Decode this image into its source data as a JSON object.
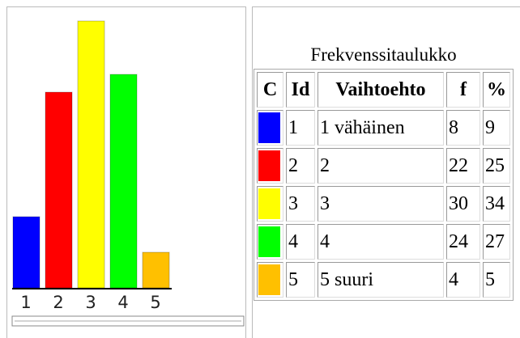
{
  "chart_data": {
    "type": "bar",
    "categories": [
      "1",
      "2",
      "3",
      "4",
      "5"
    ],
    "values": [
      8,
      22,
      30,
      24,
      4
    ],
    "colors": [
      "#0000ff",
      "#ff0000",
      "#ffff00",
      "#00ff00",
      "#ffc000"
    ]
  },
  "table": {
    "caption": "Frekvenssitaulukko",
    "header": [
      "C",
      "Id",
      "Vaihtoehto",
      "f",
      "%"
    ],
    "rows": [
      {
        "option": "1 vähäinen",
        "percent": 9
      },
      {
        "option": "2",
        "percent": 25
      },
      {
        "option": "3",
        "percent": 34
      },
      {
        "option": "4",
        "percent": 27
      },
      {
        "option": "5 suuri",
        "percent": 5
      }
    ]
  }
}
